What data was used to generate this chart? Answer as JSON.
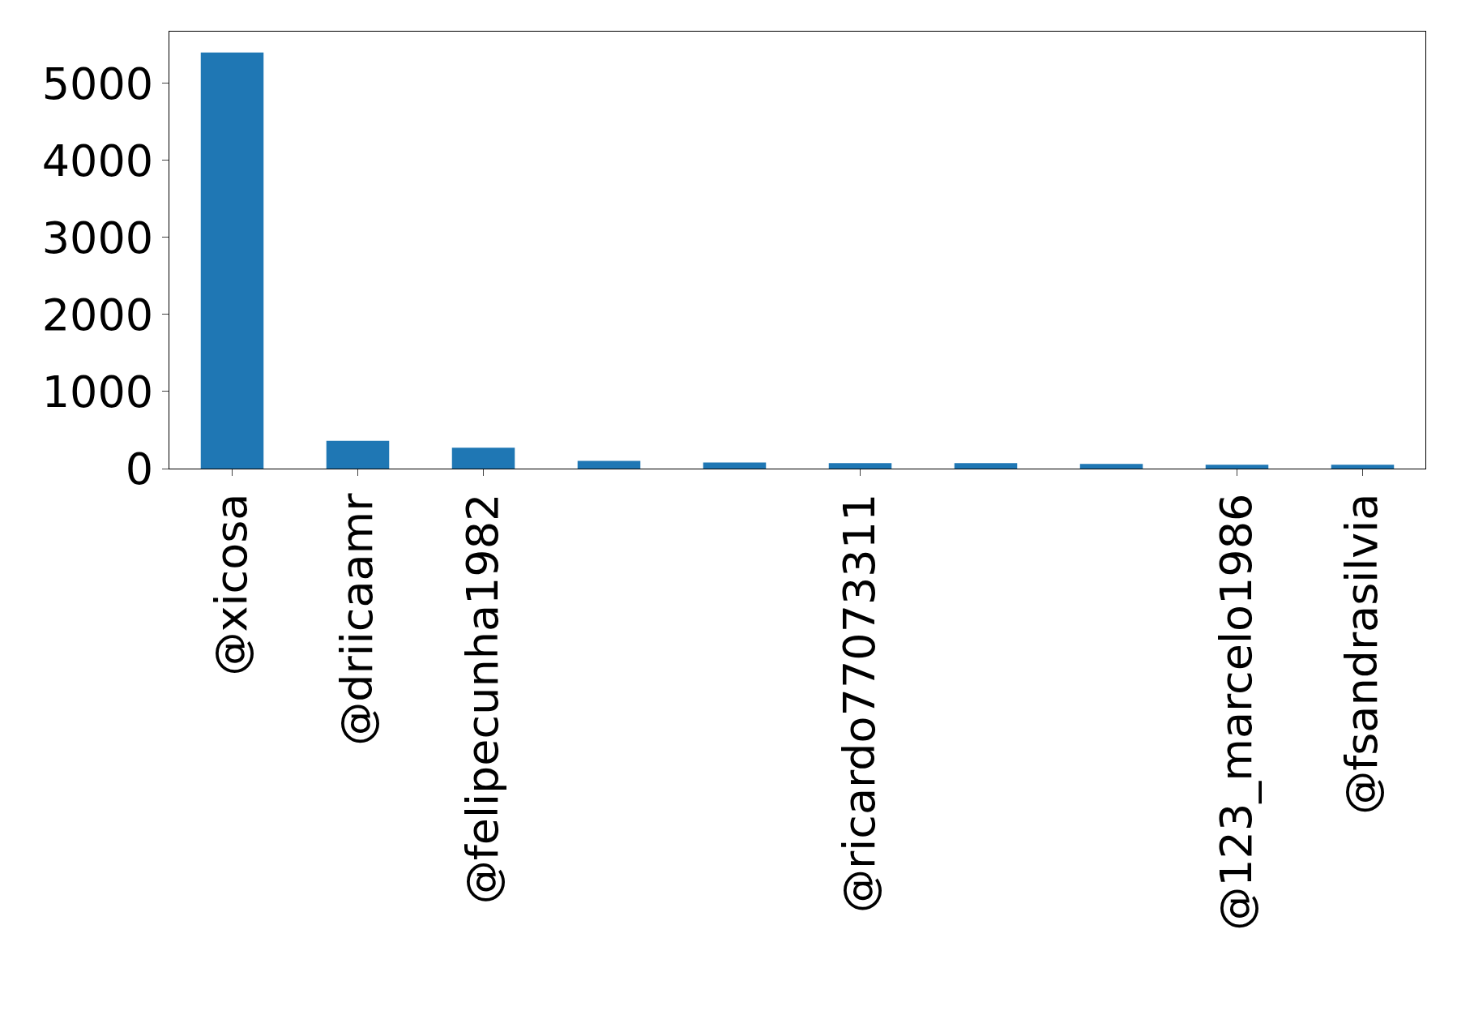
{
  "chart_data": {
    "type": "bar",
    "categories": [
      "@xicosa",
      "@driicaamr",
      "@felipecunha1982",
      null,
      null,
      "@ricardo77073311",
      null,
      null,
      "@123_marcelo1986",
      "@fsandrasilvia"
    ],
    "values": [
      5400,
      360,
      270,
      100,
      80,
      70,
      70,
      60,
      50,
      50
    ],
    "color": "#1f77b4",
    "ylim": [
      0,
      5670
    ],
    "yticks": [
      0,
      1000,
      2000,
      3000,
      4000,
      5000
    ],
    "grid": false
  }
}
